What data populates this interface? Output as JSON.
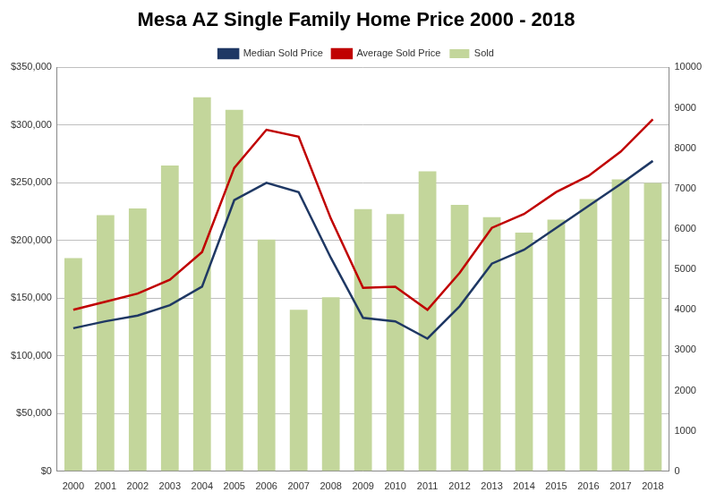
{
  "chart_data": {
    "type": "bar",
    "title": "Mesa AZ Single Family Home Price 2000 - 2018",
    "categories": [
      "2000",
      "2001",
      "2002",
      "2003",
      "2004",
      "2005",
      "2006",
      "2007",
      "2008",
      "2009",
      "2010",
      "2011",
      "2012",
      "2013",
      "2014",
      "2015",
      "2016",
      "2017",
      "2018"
    ],
    "series": [
      {
        "name": "Sold",
        "type": "bar",
        "axis": "y2",
        "color": "#c3d69b",
        "values": [
          5280,
          6340,
          6510,
          7570,
          9260,
          8950,
          5740,
          4000,
          4310,
          6490,
          6370,
          7430,
          6600,
          6290,
          5910,
          6230,
          6740,
          7230,
          7140
        ]
      },
      {
        "name": "Median Sold Price",
        "type": "line",
        "color": "#1f3864",
        "values": [
          124000,
          130000,
          135000,
          144000,
          160000,
          235000,
          250000,
          242000,
          185000,
          133000,
          130000,
          115000,
          143000,
          180000,
          192000,
          211000,
          230000,
          249000,
          269000
        ]
      },
      {
        "name": "Average Sold Price",
        "type": "line",
        "color": "#c00000",
        "values": [
          140000,
          147000,
          154000,
          166000,
          190000,
          263000,
          296000,
          290000,
          219000,
          159000,
          160000,
          140000,
          172000,
          211000,
          223000,
          242000,
          256000,
          277000,
          305000
        ]
      }
    ],
    "ylim": [
      0,
      350000
    ],
    "yticks": [
      {
        "value": 0,
        "label": "$0"
      },
      {
        "value": 50000,
        "label": "$50,000"
      },
      {
        "value": 100000,
        "label": "$100,000"
      },
      {
        "value": 150000,
        "label": "$150,000"
      },
      {
        "value": 200000,
        "label": "$200,000"
      },
      {
        "value": 250000,
        "label": "$250,000"
      },
      {
        "value": 300000,
        "label": "$300,000"
      },
      {
        "value": 350000,
        "label": "$350,000"
      }
    ],
    "y2lim": [
      0,
      10000
    ],
    "y2ticks": [
      0,
      1000,
      2000,
      3000,
      4000,
      5000,
      6000,
      7000,
      8000,
      9000,
      10000
    ],
    "grid": true,
    "legend": "top"
  }
}
